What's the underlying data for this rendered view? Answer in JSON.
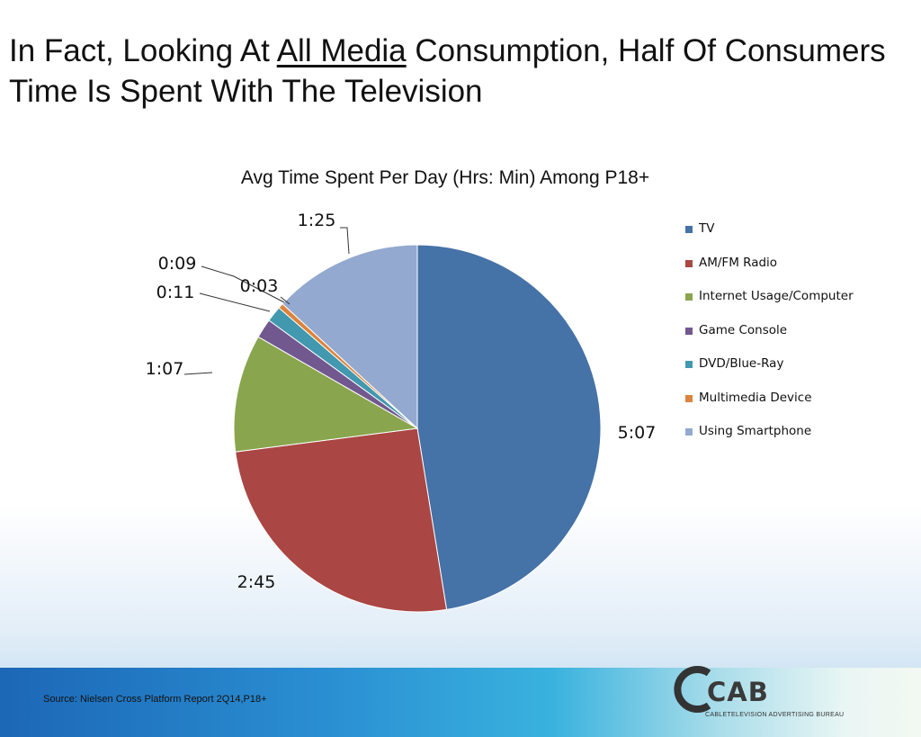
{
  "slide": {
    "title_prefix": "In Fact, Looking At ",
    "title_link": "All Media",
    "title_suffix": " Consumption, Half Of Consumers Time Is Spent With The Television",
    "source": "Source: Nielsen Cross Platform Report 2Q14,P18+"
  },
  "logo": {
    "word": "CAB",
    "subtitle": "CABLETELEVISION ADVERTISING BUREAU"
  },
  "chart_data": {
    "type": "pie",
    "title": "Avg Time Spent  Per Day (Hrs: Min) Among P18+",
    "legend_position": "right",
    "slices": [
      {
        "name": "TV",
        "label": "5:07",
        "minutes": 307,
        "color": "#4572a7"
      },
      {
        "name": "AM/FM Radio",
        "label": "2:45",
        "minutes": 165,
        "color": "#aa4643"
      },
      {
        "name": "Internet Usage/Computer",
        "label": "1:07",
        "minutes": 67,
        "color": "#89a54e"
      },
      {
        "name": "Game Console",
        "label": "0:11",
        "minutes": 11,
        "color": "#71588f"
      },
      {
        "name": "DVD/Blue-Ray",
        "label": "0:09",
        "minutes": 9,
        "color": "#4198af"
      },
      {
        "name": "Multimedia Device",
        "label": "0:03",
        "minutes": 3,
        "color": "#db843d"
      },
      {
        "name": "Using Smartphone",
        "label": "1:25",
        "minutes": 85,
        "color": "#93a9cf"
      }
    ]
  }
}
